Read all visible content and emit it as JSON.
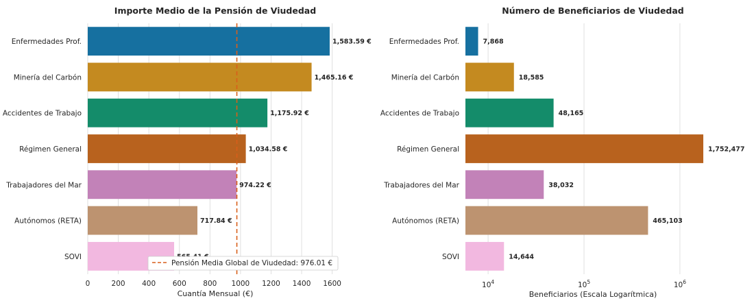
{
  "chart_data": [
    {
      "type": "bar",
      "orientation": "horizontal",
      "title": "Importe Medio de la Pensión de Viudedad",
      "xlabel": "Cuantía Mensual (€)",
      "ylabel": "",
      "categories": [
        "Enfermedades Prof.",
        "Minería del Carbón",
        "Accidentes de Trabajo",
        "Régimen General",
        "Trabajadores del Mar",
        "Autónomos (RETA)",
        "SOVI"
      ],
      "values": [
        1583.59,
        1465.16,
        1175.92,
        1034.58,
        974.22,
        717.84,
        565.41
      ],
      "value_labels": [
        "1,583.59 €",
        "1,465.16 €",
        "1,175.92 €",
        "1,034.58 €",
        "974.22 €",
        "717.84 €",
        "565.41 €"
      ],
      "colors": [
        "#1670a0",
        "#c48a20",
        "#148c6a",
        "#b8621e",
        "#c282b8",
        "#bd9370",
        "#f2b8e0"
      ],
      "xlim": [
        0,
        1660
      ],
      "xticks": [
        0,
        200,
        400,
        600,
        800,
        1000,
        1200,
        1400,
        1600
      ],
      "xtick_labels": [
        "0",
        "200",
        "400",
        "600",
        "800",
        "1000",
        "1200",
        "1400",
        "1600"
      ],
      "grid": "vertical",
      "reference_line": {
        "value": 976.01,
        "label": "Pensión Media Global de Viudedad: 976.01 €",
        "color": "#d95f1a",
        "style": "dashed"
      },
      "legend": "bottom-center"
    },
    {
      "type": "bar",
      "orientation": "horizontal",
      "title": "Número de Beneficiarios de Viudedad",
      "xlabel": "Beneficiarios (Escala Logarítmica)",
      "ylabel": "",
      "xscale": "log",
      "categories": [
        "Enfermedades Prof.",
        "Minería del Carbón",
        "Accidentes de Trabajo",
        "Régimen General",
        "Trabajadores del Mar",
        "Autónomos (RETA)",
        "SOVI"
      ],
      "values": [
        7868,
        18585,
        48165,
        1752477,
        38032,
        465103,
        14644
      ],
      "value_labels": [
        "7,868",
        "18,585",
        "48,165",
        "1,752,477",
        "38,032",
        "465,103",
        "14,644"
      ],
      "colors": [
        "#1670a0",
        "#c48a20",
        "#148c6a",
        "#b8621e",
        "#c282b8",
        "#bd9370",
        "#f2b8e0"
      ],
      "xlim": [
        5800,
        2600000
      ],
      "xticks": [
        10000,
        100000,
        1000000
      ],
      "xtick_labels": [
        {
          "base": "10",
          "exp": "4"
        },
        {
          "base": "10",
          "exp": "5"
        },
        {
          "base": "10",
          "exp": "6"
        }
      ],
      "grid": "vertical"
    }
  ]
}
